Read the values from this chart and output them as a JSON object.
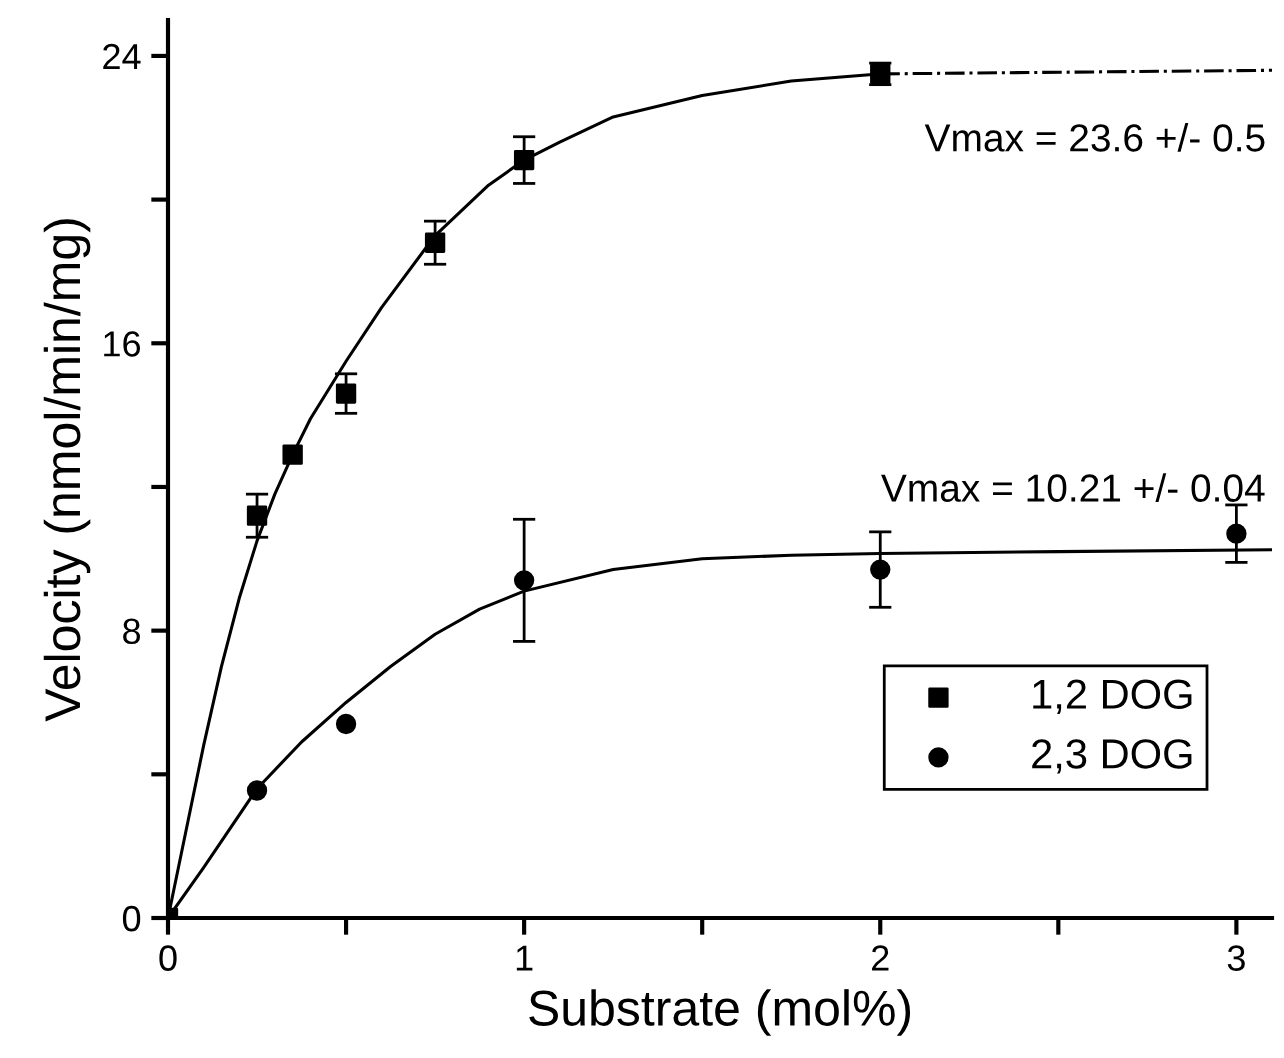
{
  "chart_data": {
    "type": "scatter",
    "xlabel": "Substrate (mol%)",
    "ylabel": "Velocity (nmol/min/mg)",
    "xlim": [
      0,
      3.1
    ],
    "ylim": [
      0,
      25
    ],
    "xticks": [
      0,
      {
        "value": 0.5,
        "label": null
      },
      1,
      {
        "value": 1.5,
        "label": null
      },
      2,
      {
        "value": 2.5,
        "label": null
      },
      3
    ],
    "yticks": [
      0,
      {
        "value": 4,
        "label": null
      },
      8,
      {
        "value": 12,
        "label": null
      },
      16,
      {
        "value": 20,
        "label": null
      },
      24
    ],
    "grid": false,
    "legend": "bottom right",
    "series": [
      {
        "name": "1,2 DOG",
        "marker": "square",
        "color": "#000000",
        "x": [
          0,
          0.25,
          0.35,
          0.5,
          0.75,
          1.0,
          2.0
        ],
        "values": [
          0,
          11.2,
          12.9,
          14.6,
          18.8,
          21.1,
          23.5
        ],
        "errors": [
          null,
          0.6,
          null,
          0.55,
          0.6,
          0.65,
          0.3
        ]
      },
      {
        "name": "2,3 DOG",
        "marker": "circle",
        "color": "#000000",
        "x": [
          0.25,
          0.5,
          1.0,
          2.0,
          3.0
        ],
        "values": [
          3.55,
          5.4,
          9.4,
          9.7,
          10.7
        ],
        "errors": [
          null,
          null,
          1.7,
          1.05,
          0.8
        ]
      },
      {
        "type": "line",
        "line_style": "solid",
        "color": "#000000",
        "x": [
          0,
          0.05,
          0.1,
          0.15,
          0.2,
          0.25,
          0.3,
          0.35,
          0.4,
          0.5,
          0.6,
          0.75,
          0.9,
          1.0,
          1.1,
          1.25,
          1.5,
          1.75,
          2.0
        ],
        "values": [
          0,
          2.4,
          4.8,
          7.0,
          8.9,
          10.5,
          11.8,
          12.9,
          13.9,
          15.5,
          17.0,
          19.0,
          20.4,
          21.1,
          21.6,
          22.3,
          22.9,
          23.3,
          23.5
        ]
      },
      {
        "type": "line",
        "line_style": "dashdot",
        "color": "#000000",
        "x": [
          2.0,
          3.1
        ],
        "values": [
          23.5,
          23.6
        ]
      },
      {
        "type": "line",
        "line_style": "solid",
        "color": "#000000",
        "x": [
          0,
          0.1,
          0.25,
          0.375,
          0.5,
          0.625,
          0.75,
          0.875,
          1.0,
          1.25,
          1.5,
          1.75,
          2.0,
          2.5,
          3.1
        ],
        "values": [
          0,
          1.4,
          3.6,
          4.9,
          6.0,
          7.0,
          7.9,
          8.6,
          9.1,
          9.7,
          10.0,
          10.1,
          10.15,
          10.2,
          10.25
        ]
      }
    ],
    "annotations": [
      "Vmax = 23.6 +/- 0.5",
      "Vmax = 10.21 +/- 0.04"
    ]
  }
}
